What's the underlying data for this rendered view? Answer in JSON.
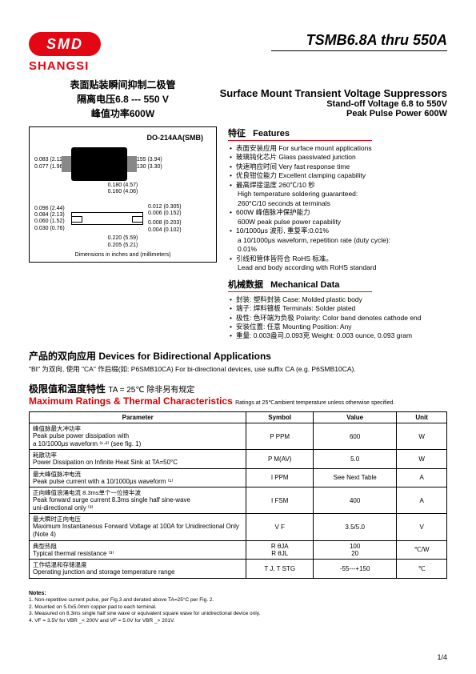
{
  "logo_text": "SMD",
  "brand": "SHANGSI",
  "title_right": "TSMB6.8A thru 550A",
  "cn_titles": {
    "l1": "表面贴装瞬间抑制二极管",
    "l2": "隔离电压6.8 --- 550 V",
    "l3": "峰值功率600W"
  },
  "en_titles": {
    "l1": "Surface Mount Transient Voltage Suppressors",
    "l2": "Stand-off Voltage 6.8 to 550V",
    "l3": "Peak Pulse Power 600W"
  },
  "diagram": {
    "pkg_label": "DO-214AA(SMB)",
    "dim_a1": "0.083 (2.11)",
    "dim_a2": "0.077 (1.96)",
    "dim_b1": "0.155 (3.94)",
    "dim_b2": "0.130 (3.30)",
    "dim_c1": "0.180 (4.57)",
    "dim_c2": "0.160 (4.06)",
    "dim_d1": "0.012 (0.305)",
    "dim_d2": "0.006 (0.152)",
    "dim_e1": "0.096 (2.44)",
    "dim_e2": "0.084 (2.13)",
    "dim_f1": "0.060 (1.52)",
    "dim_f2": "0.030 (0.76)",
    "dim_g1": "0.008 (0.203)",
    "dim_g2": "0.004 (0.102)",
    "dim_h1": "0.220 (5.59)",
    "dim_h2": "0.205 (5.21)",
    "caption": "Dimensions in inches and (millimeters)"
  },
  "features": {
    "hd_cn": "特征",
    "hd_en": "Features",
    "items": [
      {
        "cn": "表面安装应用",
        "en": "For surface mount applications"
      },
      {
        "cn": "玻璃钝化芯片",
        "en": "Glass passivated junction"
      },
      {
        "cn": "快速响应时间",
        "en": "Very fast response time"
      },
      {
        "cn": "优良钳位能力",
        "en": "Excellent clamping capability"
      },
      {
        "cn": "最高焊接温度 260℃/10 秒",
        "en": ""
      },
      {
        "cn": "",
        "en": "High temperature soldering guaranteed:",
        "sub": true
      },
      {
        "cn": "",
        "en": "260°C/10 seconds at terminals",
        "sub": true
      },
      {
        "cn": "600W 峰值脉冲保护能力",
        "en": ""
      },
      {
        "cn": "",
        "en": "600W peak pulse power capability",
        "sub": true
      },
      {
        "cn": "10/1000μs 波形, 重复率:0.01%",
        "en": ""
      },
      {
        "cn": "",
        "en": "a 10/1000μs waveform, repetition rate (duty cycle):",
        "sub": true
      },
      {
        "cn": "",
        "en": "0.01%",
        "sub": true
      },
      {
        "cn": "引线和管体皆符合 RoHS 标准。",
        "en": ""
      },
      {
        "cn": "",
        "en": "Lead and body according with RoHS standard",
        "sub": true
      }
    ]
  },
  "mechanical": {
    "hd_cn": "机械数据",
    "hd_en": "Mechanical Data",
    "items": [
      {
        "cn": "封装: 塑料封装",
        "en": "Case: Molded plastic body"
      },
      {
        "cn": "端子: 焊料镀板",
        "en": "Terminals: Solder plated"
      },
      {
        "cn": "极性: 色环端为负极",
        "en": "Polarity: Color band denotes cathode end"
      },
      {
        "cn": "安装位置: 任意",
        "en": "Mounting Position: Any"
      },
      {
        "cn": "重量: 0.003盎司,0.093克",
        "en": "Weight: 0.003 ounce, 0.093 gram"
      }
    ]
  },
  "bidir": {
    "hd": "产品的双向应用  Devices for Bidirectional Applications",
    "txt": "\"BI\" 为双向, 使用 \"CA\" 作后缀(如: P6SMB10CA) For bi-directional devices, use suffix CA (e.g. P6SMB10CA)."
  },
  "ratings": {
    "hd_cn": "极限值和温度特性",
    "cond": "TA = 25℃  除非另有规定",
    "hd_en": "Maximum Ratings & Thermal Characteristics",
    "sub": "Ratings at 25℃ambient temperature unless otherwise specified."
  },
  "table": {
    "headers": [
      "Parameter",
      "Symbol",
      "Value",
      "Unit"
    ],
    "rows": [
      {
        "cn": "峰值脉最大冲功率",
        "en": "Peak pulse power dissipation with\na 10/1000μs waveform ⁽¹·²⁾    (see fig. 1)",
        "sym": "P PPM",
        "val": "600",
        "unit": "W"
      },
      {
        "cn": "耗散功率",
        "en": "Power Dissipation on Infinite Heat Sink at TA=50°C",
        "sym": "P M(AV)",
        "val": "5.0",
        "unit": "W"
      },
      {
        "cn": "最大峰值脉冲电流",
        "en": "Peak pulse current with a 10/1000μs waveform ⁽¹⁾",
        "sym": "I PPM",
        "val": "See Next Table",
        "unit": "A"
      },
      {
        "cn": "正向峰值浪涌电流 8.3ms单个一位接半波",
        "en": "Peak forward surge current 8.3ms single half sine-wave\nuni-directional only ⁽³⁾",
        "sym": "I FSM",
        "val": "400",
        "unit": "A"
      },
      {
        "cn": "最大瞬时正向电压",
        "en": "Maximum Instantaneous Forward Voltage at 100A for Unidirectional Only (Note 4)",
        "sym": "V F",
        "val": "3.5/5.0",
        "unit": "V"
      },
      {
        "cn": "典型热阻",
        "en": "Typical thermal resistance ⁽³⁾",
        "sym": "R θJA\nR θJL",
        "val": "100\n20",
        "unit": "℃/W"
      },
      {
        "cn": "工作结温和存储温度",
        "en": "Operating junction and storage temperature range",
        "sym": "T J, T STG",
        "val": "-55---+150",
        "unit": "℃"
      }
    ]
  },
  "notes": {
    "label": "Notes:",
    "items": [
      "1. Non-repetitive current pulse, per Fig.3 and derated above TA=25°C per Fig. 2.",
      "2. Mounted on 5.0x5.0mm copper pad to each terminal.",
      "3. Measured on 8.3ms single half sine wave or equivalent square wave for unidirectional device only.",
      "4. VF = 3.5V for VBR _< 200V and VF = 5.0V for VBR _> 201V."
    ]
  },
  "page_num": "1/4"
}
